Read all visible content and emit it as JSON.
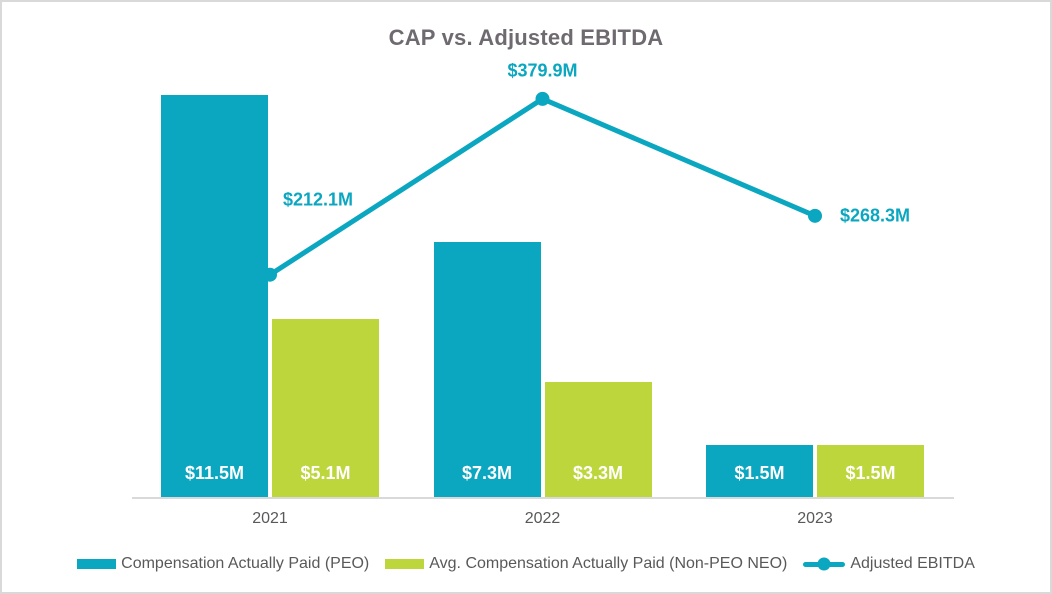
{
  "title": "CAP vs. Adjusted EBITDA",
  "colors": {
    "teal": "#0BA6C0",
    "green": "#BDD63C",
    "title_gray": "#6E6A70",
    "axis_text": "#595959",
    "axis_line": "#D9D9D9",
    "frame": "#D9D9D9",
    "bar_label": "#FFFFFF"
  },
  "chart_data": {
    "type": "combo (bar + line)",
    "title": "CAP vs. Adjusted EBITDA",
    "categories": [
      "2021",
      "2022",
      "2023"
    ],
    "units": "USD millions",
    "series": [
      {
        "key": "cap-peo",
        "name": "Compensation Actually Paid (PEO)",
        "type": "bar",
        "color_key": "teal",
        "axis": "primary",
        "values": [
          11.5,
          7.3,
          1.5
        ],
        "value_labels": [
          "$11.5M",
          "$7.3M",
          "$1.5M"
        ]
      },
      {
        "key": "avg-cap-non-peo-neo",
        "name": "Avg. Compensation Actually Paid (Non-PEO NEO)",
        "type": "bar",
        "color_key": "green",
        "axis": "primary",
        "values": [
          5.1,
          3.3,
          1.5
        ],
        "value_labels": [
          "$5.1M",
          "$3.3M",
          "$1.5M"
        ]
      },
      {
        "key": "adjusted-ebitda",
        "name": "Adjusted EBITDA",
        "type": "line",
        "color_key": "teal",
        "axis": "secondary",
        "values": [
          212.1,
          379.9,
          268.3
        ],
        "value_labels": [
          "$212.1M",
          "$379.9M",
          "$268.3M"
        ]
      }
    ],
    "xlabel": "",
    "ylabel": "",
    "primary_ylim": [
      0,
      12.5
    ],
    "secondary_ylim": [
      0,
      417
    ],
    "gridlines": false,
    "y_axis_labels_visible": false,
    "legend_position": "bottom"
  },
  "legend": {
    "items": [
      {
        "label": "Compensation Actually Paid (PEO)",
        "marker": "rect",
        "color_key": "teal"
      },
      {
        "label": "Avg. Compensation Actually Paid (Non-PEO NEO)",
        "marker": "rect",
        "color_key": "green"
      },
      {
        "label": "Adjusted EBITDA",
        "marker": "line-dot",
        "color_key": "teal"
      }
    ]
  }
}
